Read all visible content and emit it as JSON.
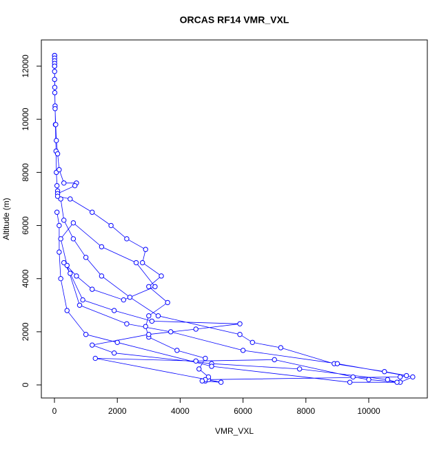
{
  "chart_data": {
    "type": "line",
    "title": "ORCAS RF14 VMR_VXL",
    "x_label": "VMR_VXL",
    "y_label": "Altitude (m)",
    "color": "#0000ff",
    "x": [
      4800,
      4900,
      11000,
      11200,
      10500,
      8900,
      7200,
      6300,
      5900,
      3300,
      2400,
      1500,
      1000,
      600,
      300,
      200,
      100,
      80,
      60,
      50,
      30,
      20,
      10,
      5,
      5,
      5,
      5,
      5,
      5,
      5,
      5,
      5,
      10,
      20,
      40,
      60,
      100,
      150,
      300,
      700,
      650,
      100,
      100,
      500,
      1200,
      1800,
      2300,
      2900,
      2800,
      3400,
      3000,
      3600,
      3000,
      2900,
      3000,
      3900,
      4800,
      4600,
      4900,
      4800,
      4700,
      5300,
      1300,
      4500,
      7000,
      9500,
      10000,
      11000,
      11400,
      9000,
      6000,
      3700,
      2300,
      800,
      400,
      200,
      600,
      1500,
      2600,
      3200,
      2200,
      1200,
      700,
      300,
      500,
      900,
      1900,
      3100,
      5900,
      4500,
      3000,
      1200,
      1900,
      5000,
      7800,
      10600,
      10900,
      9400,
      5000,
      2000,
      1000,
      400,
      200,
      150,
      150,
      80
    ],
    "values": [
      150,
      200,
      300,
      350,
      500,
      800,
      1400,
      1600,
      1900,
      2600,
      3300,
      4100,
      4800,
      5500,
      6200,
      7000,
      7300,
      7500,
      8000,
      8800,
      9800,
      10500,
      11200,
      12000,
      12400,
      12400,
      12300,
      12200,
      12100,
      12000,
      11800,
      11500,
      11000,
      10400,
      9800,
      9200,
      8700,
      8100,
      7600,
      7600,
      7500,
      7200,
      7100,
      7000,
      6500,
      6000,
      5500,
      5100,
      4600,
      4100,
      3700,
      3100,
      2600,
      2200,
      1800,
      1300,
      1000,
      600,
      300,
      200,
      150,
      100,
      1000,
      900,
      950,
      300,
      200,
      100,
      300,
      800,
      1300,
      2000,
      2300,
      3000,
      4500,
      5500,
      6100,
      5200,
      4600,
      3700,
      3200,
      3600,
      4100,
      4600,
      4200,
      3200,
      2800,
      2400,
      2300,
      2100,
      1900,
      1500,
      1200,
      800,
      600,
      200,
      100,
      100,
      700,
      1600,
      1900,
      2800,
      4000,
      5000,
      6000,
      6500
    ],
    "xlim": [
      -417,
      11864
    ],
    "ylim": [
      -492,
      12986
    ],
    "xticks": [
      0,
      2000,
      4000,
      6000,
      8000,
      10000
    ],
    "yticks": [
      0,
      2000,
      4000,
      6000,
      8000,
      10000,
      12000
    ]
  }
}
